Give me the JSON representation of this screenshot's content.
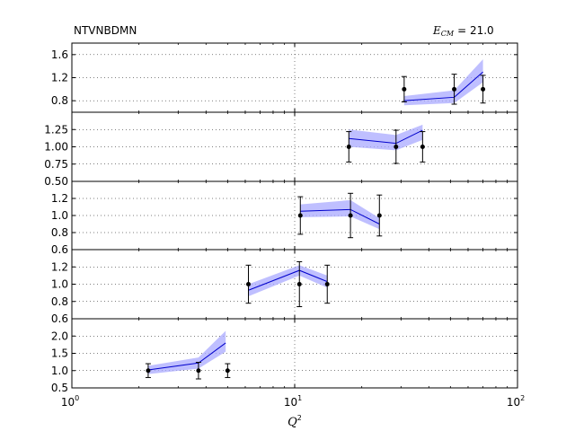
{
  "chart_data": {
    "type": "line",
    "title_left": "NTVNBDMN",
    "title_right": {
      "symbol": "E",
      "subscript": "CM",
      "value_text": "= 21.0"
    },
    "xlabel": {
      "base": "Q",
      "sup": "2"
    },
    "xscale": "log",
    "xlim": [
      1,
      100
    ],
    "xticks": [
      {
        "base": "10",
        "exp": "0"
      },
      {
        "base": "10",
        "exp": "1"
      },
      {
        "base": "10",
        "exp": "2"
      }
    ],
    "grid": true,
    "band_color": "#aaaaff",
    "line_color": "#0000cc",
    "point_color": "#000000",
    "panels": [
      {
        "ylim": [
          0.6,
          1.8
        ],
        "yticks": [
          "0.8",
          "1.2",
          "1.6"
        ],
        "theory_x": [
          31,
          52,
          70
        ],
        "theory_y": [
          0.8,
          0.86,
          1.3
        ],
        "band_lo": [
          0.72,
          0.76,
          1.12
        ],
        "band_hi": [
          0.88,
          0.98,
          1.52
        ],
        "data_x": [
          31,
          52,
          70
        ],
        "data_y": [
          1.0,
          1.0,
          1.0
        ],
        "data_err": [
          0.22,
          0.26,
          0.24
        ]
      },
      {
        "ylim": [
          0.5,
          1.5
        ],
        "yticks": [
          "0.50",
          "0.75",
          "1.00",
          "1.25"
        ],
        "theory_x": [
          17.5,
          28.5,
          37.5
        ],
        "theory_y": [
          1.12,
          1.05,
          1.24
        ],
        "band_lo": [
          1.0,
          0.95,
          1.1
        ],
        "band_hi": [
          1.25,
          1.17,
          1.32
        ],
        "data_x": [
          17.5,
          28.5,
          37.5
        ],
        "data_y": [
          1.0,
          1.0,
          1.0
        ],
        "data_err": [
          0.22,
          0.24,
          0.22
        ]
      },
      {
        "ylim": [
          0.6,
          1.4
        ],
        "yticks": [
          "0.6",
          "0.8",
          "1.0",
          "1.2"
        ],
        "theory_x": [
          10.6,
          17.8,
          24
        ],
        "theory_y": [
          1.05,
          1.07,
          0.9
        ],
        "band_lo": [
          0.98,
          0.99,
          0.84
        ],
        "band_hi": [
          1.13,
          1.18,
          0.97
        ],
        "data_x": [
          10.6,
          17.8,
          24
        ],
        "data_y": [
          1.0,
          1.0,
          1.0
        ],
        "data_err": [
          0.22,
          0.26,
          0.24
        ]
      },
      {
        "ylim": [
          0.6,
          1.4
        ],
        "yticks": [
          "0.6",
          "0.8",
          "1.0",
          "1.2"
        ],
        "theory_x": [
          6.2,
          10.5,
          14
        ],
        "theory_y": [
          0.93,
          1.16,
          1.03
        ],
        "band_lo": [
          0.86,
          1.1,
          0.96
        ],
        "band_hi": [
          1.0,
          1.22,
          1.1
        ],
        "data_x": [
          6.2,
          10.5,
          14
        ],
        "data_y": [
          1.0,
          1.0,
          1.0
        ],
        "data_err": [
          0.22,
          0.26,
          0.22
        ]
      },
      {
        "ylim": [
          0.5,
          2.5
        ],
        "yticks": [
          "0.5",
          "1.0",
          "1.5",
          "2.0"
        ],
        "theory_x": [
          2.2,
          3.7,
          4.9
        ],
        "theory_y": [
          1.02,
          1.22,
          1.8
        ],
        "band_lo": [
          0.9,
          1.06,
          1.55
        ],
        "band_hi": [
          1.14,
          1.38,
          2.15
        ],
        "data_x": [
          2.2,
          3.7,
          5.0
        ],
        "data_y": [
          1.0,
          1.0,
          1.0
        ],
        "data_err": [
          0.2,
          0.24,
          0.2
        ]
      }
    ]
  }
}
